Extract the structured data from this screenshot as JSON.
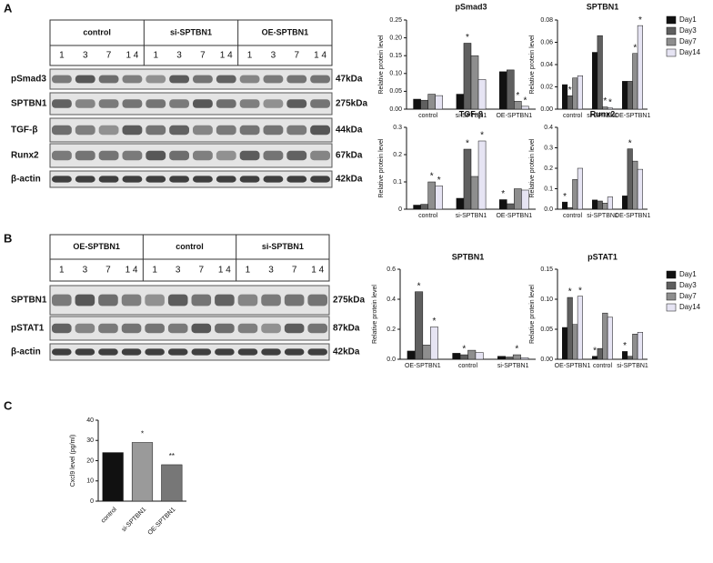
{
  "panel_labels": [
    "A",
    "B",
    "C"
  ],
  "blots": [
    {
      "groups": [
        "control",
        "si-SPTBN1",
        "OE-SPTBN1"
      ],
      "lanes": [
        "1",
        "3",
        "7",
        "1 4"
      ],
      "rows": [
        {
          "name": "pSmad3",
          "size": "47kDa"
        },
        {
          "name": "SPTBN1",
          "size": "275kDa"
        },
        {
          "name": "TGF-β",
          "size": "44kDa"
        },
        {
          "name": "Runx2",
          "size": "67kDa"
        },
        {
          "name": "β-actin",
          "size": "42kDa"
        }
      ]
    },
    {
      "groups": [
        "OE-SPTBN1",
        "control",
        "si-SPTBN1"
      ],
      "lanes": [
        "1",
        "3",
        "7",
        "1 4"
      ],
      "rows": [
        {
          "name": "SPTBN1",
          "size": "275kDa"
        },
        {
          "name": "pSTAT1",
          "size": "87kDa"
        },
        {
          "name": "β-actin",
          "size": "42kDa"
        }
      ]
    }
  ],
  "chart_data": [
    {
      "type": "bar",
      "title": "pSmad3",
      "y_label": "Relative protein level",
      "categories": [
        "control",
        "si-SPTBN1",
        "OE-SPTBN1"
      ],
      "ylim": [
        0,
        0.25
      ],
      "yticks": [
        {
          "value": 0,
          "label": "0.00"
        },
        {
          "value": 0.05,
          "label": "0.05"
        },
        {
          "value": 0.1,
          "label": "0.10"
        },
        {
          "value": 0.15,
          "label": "0.15"
        },
        {
          "value": 0.2,
          "label": "0.20"
        },
        {
          "value": 0.25,
          "label": "0.25"
        }
      ],
      "series": [
        {
          "name": "Day1",
          "color": "#111111",
          "values": [
            0.028,
            0.042,
            0.105
          ],
          "significance": [
            null,
            null,
            null
          ]
        },
        {
          "name": "Day3",
          "color": "#5f5f5f",
          "values": [
            0.025,
            0.185,
            0.11
          ],
          "significance": [
            null,
            "*",
            null
          ]
        },
        {
          "name": "Day7",
          "color": "#8e8e8e",
          "values": [
            0.042,
            0.15,
            0.022
          ],
          "significance": [
            null,
            null,
            "*"
          ]
        },
        {
          "name": "Day14",
          "color": "#e6e4f3",
          "values": [
            0.038,
            0.083,
            0.008
          ],
          "significance": [
            null,
            null,
            "*"
          ]
        }
      ]
    },
    {
      "type": "bar",
      "title": "SPTBN1",
      "y_label": "Relative protein level",
      "legend": "right",
      "categories": [
        "control",
        "si-SPTBN1",
        "OE-SPTBN1"
      ],
      "ylim": [
        0,
        0.08
      ],
      "yticks": [
        {
          "value": 0,
          "label": "0.00"
        },
        {
          "value": 0.02,
          "label": "0.02"
        },
        {
          "value": 0.04,
          "label": "0.04"
        },
        {
          "value": 0.06,
          "label": "0.06"
        },
        {
          "value": 0.08,
          "label": "0.08"
        }
      ],
      "series": [
        {
          "name": "Day1",
          "color": "#111111",
          "values": [
            0.022,
            0.051,
            0.025
          ],
          "significance": [
            null,
            null,
            null
          ]
        },
        {
          "name": "Day3",
          "color": "#5f5f5f",
          "values": [
            0.012,
            0.066,
            0.025
          ],
          "significance": [
            "*",
            null,
            null
          ]
        },
        {
          "name": "Day7",
          "color": "#8e8e8e",
          "values": [
            0.028,
            0.002,
            0.05
          ],
          "significance": [
            null,
            "*",
            "*"
          ]
        },
        {
          "name": "Day14",
          "color": "#e6e4f3",
          "values": [
            0.03,
            0.001,
            0.075
          ],
          "significance": [
            null,
            "*",
            "*"
          ]
        }
      ]
    },
    {
      "type": "bar",
      "title": "TGF-β",
      "y_label": "Relative protein level",
      "categories": [
        "control",
        "si-SPTBN1",
        "OE-SPTBN1"
      ],
      "ylim": [
        0,
        0.3
      ],
      "yticks": [
        0,
        0.1,
        0.2,
        0.3
      ],
      "series": [
        {
          "name": "Day1",
          "color": "#111111",
          "values": [
            0.015,
            0.04,
            0.035
          ],
          "significance": [
            null,
            null,
            "*"
          ]
        },
        {
          "name": "Day3",
          "color": "#5f5f5f",
          "values": [
            0.018,
            0.22,
            0.02
          ],
          "significance": [
            null,
            "*",
            null
          ]
        },
        {
          "name": "Day7",
          "color": "#8e8e8e",
          "values": [
            0.1,
            0.12,
            0.075
          ],
          "significance": [
            "*",
            null,
            null
          ]
        },
        {
          "name": "Day14",
          "color": "#e6e4f3",
          "values": [
            0.085,
            0.25,
            0.07
          ],
          "significance": [
            "*",
            "*",
            null
          ]
        }
      ]
    },
    {
      "type": "bar",
      "title": "Runx2",
      "y_label": "Relative protein level",
      "categories": [
        "control",
        "si-SPTBN1",
        "OE-SPTBN1"
      ],
      "ylim": [
        0,
        0.4
      ],
      "yticks": [
        {
          "value": 0,
          "label": "0.0"
        },
        0.1,
        0.2,
        0.3,
        0.4
      ],
      "series": [
        {
          "name": "Day1",
          "color": "#111111",
          "values": [
            0.035,
            0.045,
            0.065
          ],
          "significance": [
            "*",
            null,
            null
          ]
        },
        {
          "name": "Day3",
          "color": "#5f5f5f",
          "values": [
            0.008,
            0.04,
            0.295
          ],
          "significance": [
            null,
            null,
            "*"
          ]
        },
        {
          "name": "Day7",
          "color": "#8e8e8e",
          "values": [
            0.145,
            0.03,
            0.235
          ],
          "significance": [
            null,
            null,
            null
          ]
        },
        {
          "name": "Day14",
          "color": "#e6e4f3",
          "values": [
            0.2,
            0.06,
            0.195
          ],
          "significance": [
            null,
            null,
            null
          ]
        }
      ]
    },
    {
      "type": "bar",
      "title": "SPTBN1",
      "y_label": "Relative protein level",
      "categories": [
        "OE-SPTBN1",
        "control",
        "si-SPTBN1"
      ],
      "ylim": [
        0,
        0.6
      ],
      "yticks": [
        {
          "value": 0,
          "label": "0.0"
        },
        0.2,
        0.4,
        0.6
      ],
      "series": [
        {
          "name": "Day1",
          "color": "#111111",
          "values": [
            0.055,
            0.04,
            0.02
          ],
          "significance": [
            null,
            null,
            null
          ]
        },
        {
          "name": "Day3",
          "color": "#5f5f5f",
          "values": [
            0.45,
            0.03,
            0.015
          ],
          "significance": [
            "*",
            "*",
            null
          ]
        },
        {
          "name": "Day7",
          "color": "#8e8e8e",
          "values": [
            0.095,
            0.06,
            0.03
          ],
          "significance": [
            null,
            null,
            "*"
          ]
        },
        {
          "name": "Day14",
          "color": "#e6e4f3",
          "values": [
            0.215,
            0.045,
            0.01
          ],
          "significance": [
            "*",
            null,
            null
          ]
        }
      ]
    },
    {
      "type": "bar",
      "title": "pSTAT1",
      "y_label": "Relative protein level",
      "legend": "right",
      "categories": [
        "OE-SPTBN1",
        "control",
        "si-SPTBN1"
      ],
      "ylim": [
        0,
        0.15
      ],
      "yticks": [
        {
          "value": 0,
          "label": "0.00"
        },
        {
          "value": 0.05,
          "label": "0.05"
        },
        {
          "value": 0.1,
          "label": "0.10"
        },
        {
          "value": 0.15,
          "label": "0.15"
        }
      ],
      "series": [
        {
          "name": "Day1",
          "color": "#111111",
          "values": [
            0.053,
            0.005,
            0.013
          ],
          "significance": [
            null,
            "*",
            "*"
          ]
        },
        {
          "name": "Day3",
          "color": "#5f5f5f",
          "values": [
            0.103,
            0.018,
            0.005
          ],
          "significance": [
            "*",
            null,
            null
          ]
        },
        {
          "name": "Day7",
          "color": "#8e8e8e",
          "values": [
            0.058,
            0.077,
            0.042
          ],
          "significance": [
            null,
            null,
            null
          ]
        },
        {
          "name": "Day14",
          "color": "#e6e4f3",
          "values": [
            0.105,
            0.07,
            0.045
          ],
          "significance": [
            "*",
            null,
            null
          ]
        }
      ]
    },
    {
      "type": "simplebar",
      "y_label": "Cxcl9 level (pg/ml)",
      "categories": [
        "control",
        "si-SPTBN1",
        "OE-SPTBN1"
      ],
      "values": [
        24,
        29,
        18
      ],
      "colors": [
        "#111111",
        "#9a9a9a",
        "#777777"
      ],
      "significance": [
        null,
        "*",
        "**"
      ],
      "ylim": [
        0,
        40
      ],
      "yticks": [
        0,
        10,
        20,
        30,
        40
      ]
    }
  ]
}
